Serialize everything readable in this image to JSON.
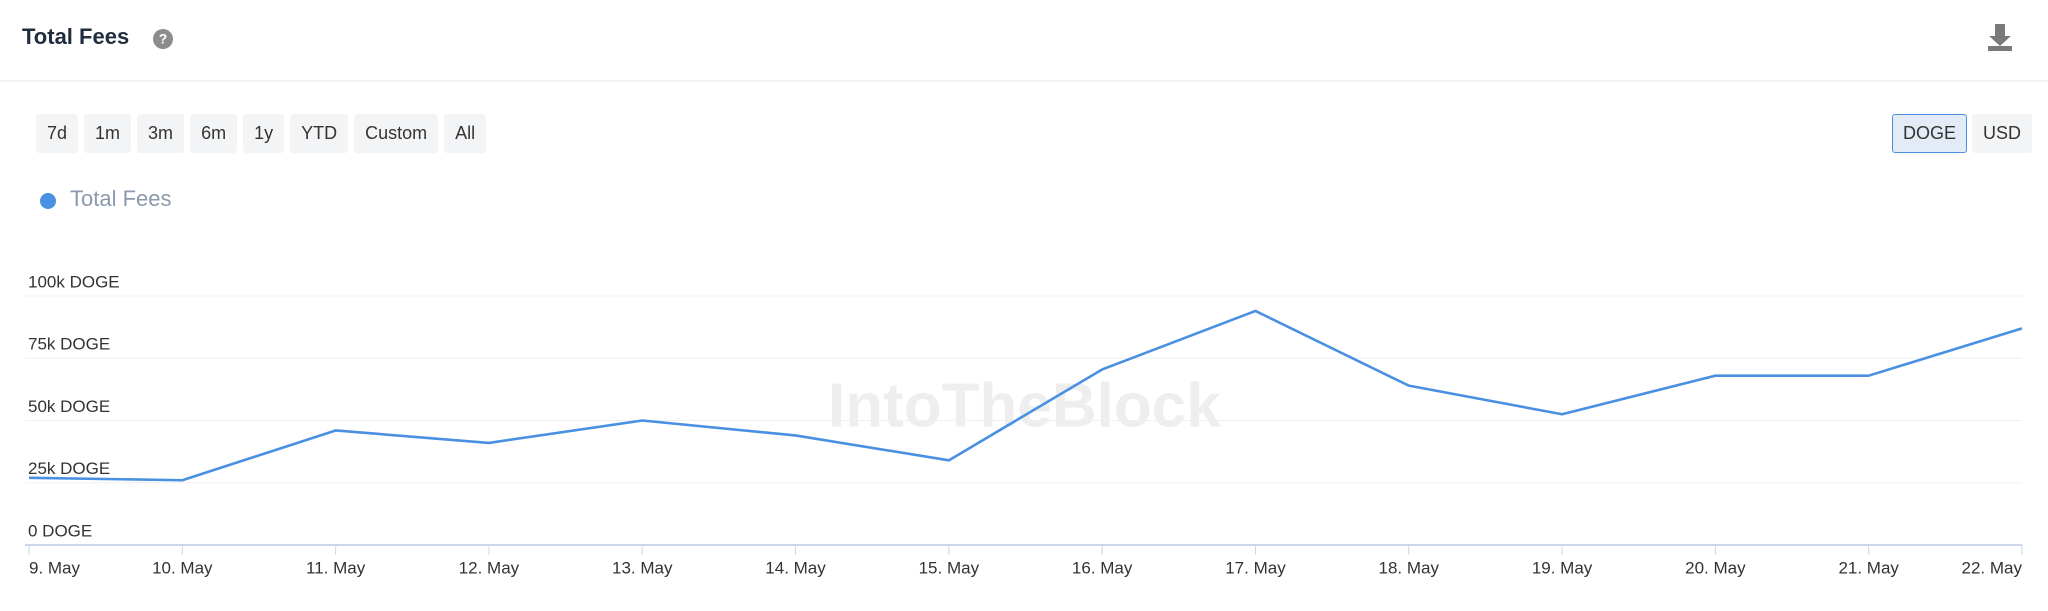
{
  "header": {
    "title": "Total Fees"
  },
  "range_buttons": [
    "7d",
    "1m",
    "3m",
    "6m",
    "1y",
    "YTD",
    "Custom",
    "All"
  ],
  "currency_buttons": [
    "DOGE",
    "USD"
  ],
  "active_currency": "DOGE",
  "watermark": "IntoTheBlock",
  "chart_data": {
    "type": "line",
    "categories": [
      "9. May",
      "10. May",
      "11. May",
      "12. May",
      "13. May",
      "14. May",
      "15. May",
      "16. May",
      "17. May",
      "18. May",
      "19. May",
      "20. May",
      "21. May",
      "22. May"
    ],
    "series": [
      {
        "name": "Total Fees",
        "color": "#4a90e2",
        "values": [
          27000,
          26000,
          46000,
          41000,
          50000,
          44000,
          34000,
          70500,
          94000,
          64000,
          52500,
          68000,
          68000,
          87000
        ]
      }
    ],
    "ylim": [
      0,
      100000
    ],
    "yticks": [
      {
        "value": 0,
        "label": "0 DOGE"
      },
      {
        "value": 25000,
        "label": "25k DOGE"
      },
      {
        "value": 50000,
        "label": "50k DOGE"
      },
      {
        "value": 75000,
        "label": "75k DOGE"
      },
      {
        "value": 100000,
        "label": "100k DOGE"
      }
    ],
    "grid": true
  }
}
